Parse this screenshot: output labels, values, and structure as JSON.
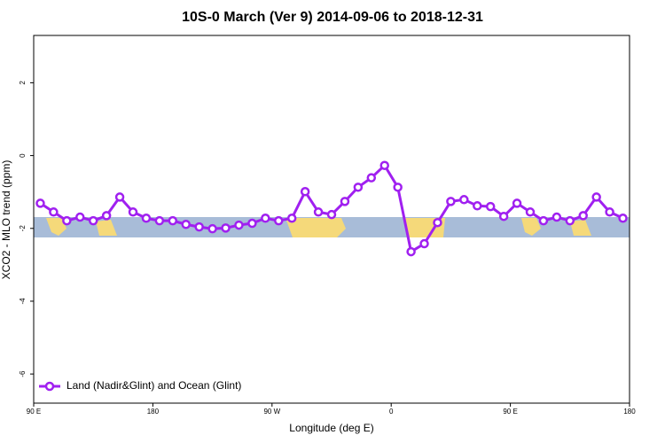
{
  "chart_data": {
    "type": "line",
    "title": "10S-0 March (Ver 9)   2014-09-06 to 2018-12-31",
    "x_label": "Longitude (deg E)",
    "y_label": "XCO2 - MLO trend (ppm)",
    "x": [
      95,
      105,
      115,
      125,
      135,
      145,
      155,
      165,
      175,
      185,
      195,
      205,
      215,
      225,
      235,
      245,
      255,
      265,
      275,
      285,
      295,
      305,
      315,
      325,
      335,
      345,
      355,
      365,
      375,
      385,
      395,
      405,
      415,
      425,
      435,
      445,
      455,
      465,
      475,
      485,
      495,
      505,
      515,
      525,
      535
    ],
    "series": [
      {
        "name": "Land (Nadir&Glint) and Ocean (Glint)",
        "color": "#a020f0",
        "values": [
          -1.31,
          -1.55,
          -1.79,
          -1.69,
          -1.79,
          -1.65,
          -1.14,
          -1.55,
          -1.72,
          -1.79,
          -1.79,
          -1.89,
          -1.96,
          -2.01,
          -1.99,
          -1.91,
          -1.86,
          -1.72,
          -1.79,
          -1.72,
          -0.99,
          -1.55,
          -1.62,
          -1.26,
          -0.87,
          -0.61,
          -0.27,
          -0.87,
          -2.64,
          -2.42,
          -1.84,
          -1.26,
          -1.21,
          -1.38,
          -1.4,
          -1.67,
          -1.31,
          -1.55,
          -1.79,
          -1.69,
          -1.79,
          -1.65,
          -1.14,
          -1.55,
          -1.72
        ]
      }
    ],
    "xlim": [
      90,
      540
    ],
    "xticks": [
      {
        "value": 90,
        "label": "90 E"
      },
      {
        "value": 180,
        "label": "180"
      },
      {
        "value": 270,
        "label": "90 W"
      },
      {
        "value": 360,
        "label": "0"
      },
      {
        "value": 450,
        "label": "90 E"
      },
      {
        "value": 540,
        "label": "180"
      }
    ],
    "ylim": [
      -6.8,
      3.3
    ],
    "yticks": [
      -6,
      -4,
      -2,
      0,
      2
    ],
    "legend": "bottom-left"
  }
}
